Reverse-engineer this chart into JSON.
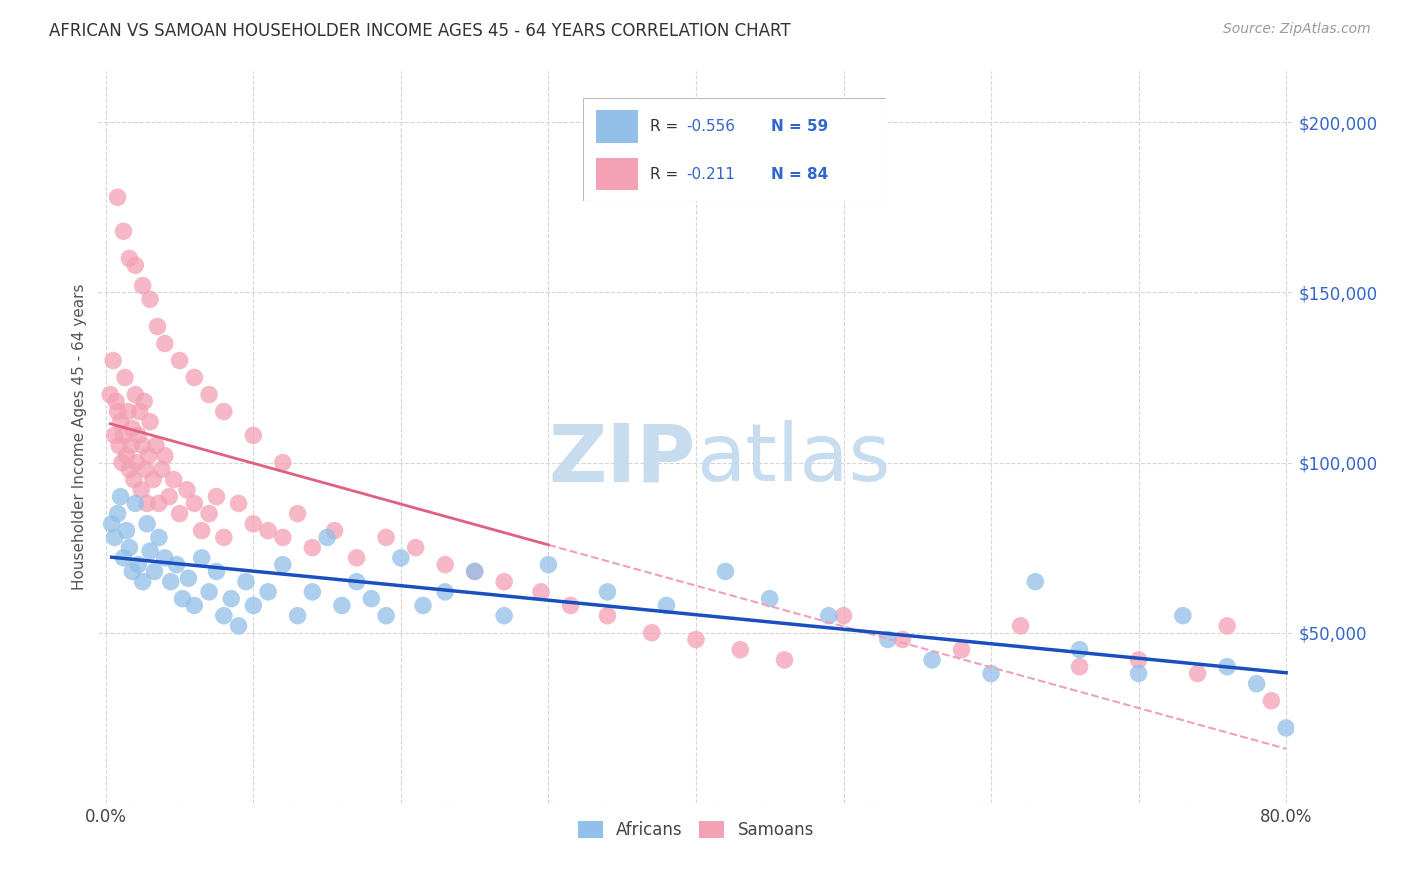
{
  "title": "AFRICAN VS SAMOAN HOUSEHOLDER INCOME AGES 45 - 64 YEARS CORRELATION CHART",
  "source": "Source: ZipAtlas.com",
  "ylabel": "Householder Income Ages 45 - 64 years",
  "ytick_values": [
    50000,
    100000,
    150000,
    200000
  ],
  "ytick_labels": [
    "$50,000",
    "$100,000",
    "$150,000",
    "$200,000"
  ],
  "xlim": [
    -0.005,
    0.805
  ],
  "ylim": [
    0,
    215000
  ],
  "african_R": -0.556,
  "african_N": 59,
  "samoan_R": -0.211,
  "samoan_N": 84,
  "african_color": "#92C0E8",
  "samoan_color": "#F4A0B5",
  "african_line_color": "#1A4FBF",
  "samoan_line_color": "#E06080",
  "samoan_dash_color": "#F0A0B8",
  "watermark_zip": "ZIP",
  "watermark_atlas": "atlas",
  "watermark_color": "#C8DCF0",
  "legend_label_african": "Africans",
  "legend_label_samoan": "Samoans",
  "african_x": [
    0.004,
    0.006,
    0.008,
    0.01,
    0.012,
    0.014,
    0.016,
    0.018,
    0.02,
    0.022,
    0.025,
    0.028,
    0.03,
    0.033,
    0.036,
    0.04,
    0.044,
    0.048,
    0.052,
    0.056,
    0.06,
    0.065,
    0.07,
    0.075,
    0.08,
    0.085,
    0.09,
    0.095,
    0.1,
    0.11,
    0.12,
    0.13,
    0.14,
    0.15,
    0.16,
    0.17,
    0.18,
    0.19,
    0.2,
    0.215,
    0.23,
    0.25,
    0.27,
    0.3,
    0.34,
    0.38,
    0.42,
    0.45,
    0.49,
    0.53,
    0.56,
    0.6,
    0.63,
    0.66,
    0.7,
    0.73,
    0.76,
    0.78,
    0.8
  ],
  "african_y": [
    82000,
    78000,
    85000,
    90000,
    72000,
    80000,
    75000,
    68000,
    88000,
    70000,
    65000,
    82000,
    74000,
    68000,
    78000,
    72000,
    65000,
    70000,
    60000,
    66000,
    58000,
    72000,
    62000,
    68000,
    55000,
    60000,
    52000,
    65000,
    58000,
    62000,
    70000,
    55000,
    62000,
    78000,
    58000,
    65000,
    60000,
    55000,
    72000,
    58000,
    62000,
    68000,
    55000,
    70000,
    62000,
    58000,
    68000,
    60000,
    55000,
    48000,
    42000,
    38000,
    65000,
    45000,
    38000,
    55000,
    40000,
    35000,
    22000
  ],
  "samoan_x": [
    0.003,
    0.005,
    0.006,
    0.007,
    0.008,
    0.009,
    0.01,
    0.011,
    0.012,
    0.013,
    0.014,
    0.015,
    0.016,
    0.017,
    0.018,
    0.019,
    0.02,
    0.021,
    0.022,
    0.023,
    0.024,
    0.025,
    0.026,
    0.027,
    0.028,
    0.029,
    0.03,
    0.032,
    0.034,
    0.036,
    0.038,
    0.04,
    0.043,
    0.046,
    0.05,
    0.055,
    0.06,
    0.065,
    0.07,
    0.075,
    0.08,
    0.09,
    0.1,
    0.11,
    0.12,
    0.13,
    0.14,
    0.155,
    0.17,
    0.19,
    0.21,
    0.23,
    0.25,
    0.27,
    0.295,
    0.315,
    0.34,
    0.37,
    0.4,
    0.43,
    0.46,
    0.5,
    0.54,
    0.58,
    0.62,
    0.66,
    0.7,
    0.74,
    0.76,
    0.79,
    0.008,
    0.012,
    0.016,
    0.02,
    0.025,
    0.03,
    0.035,
    0.04,
    0.05,
    0.06,
    0.07,
    0.08,
    0.1,
    0.12
  ],
  "samoan_y": [
    120000,
    130000,
    108000,
    118000,
    115000,
    105000,
    112000,
    100000,
    108000,
    125000,
    102000,
    115000,
    98000,
    105000,
    110000,
    95000,
    120000,
    100000,
    108000,
    115000,
    92000,
    105000,
    118000,
    98000,
    88000,
    102000,
    112000,
    95000,
    105000,
    88000,
    98000,
    102000,
    90000,
    95000,
    85000,
    92000,
    88000,
    80000,
    85000,
    90000,
    78000,
    88000,
    82000,
    80000,
    78000,
    85000,
    75000,
    80000,
    72000,
    78000,
    75000,
    70000,
    68000,
    65000,
    62000,
    58000,
    55000,
    50000,
    48000,
    45000,
    42000,
    55000,
    48000,
    45000,
    52000,
    40000,
    42000,
    38000,
    52000,
    30000,
    178000,
    168000,
    160000,
    158000,
    152000,
    148000,
    140000,
    135000,
    130000,
    125000,
    120000,
    115000,
    108000,
    100000
  ]
}
